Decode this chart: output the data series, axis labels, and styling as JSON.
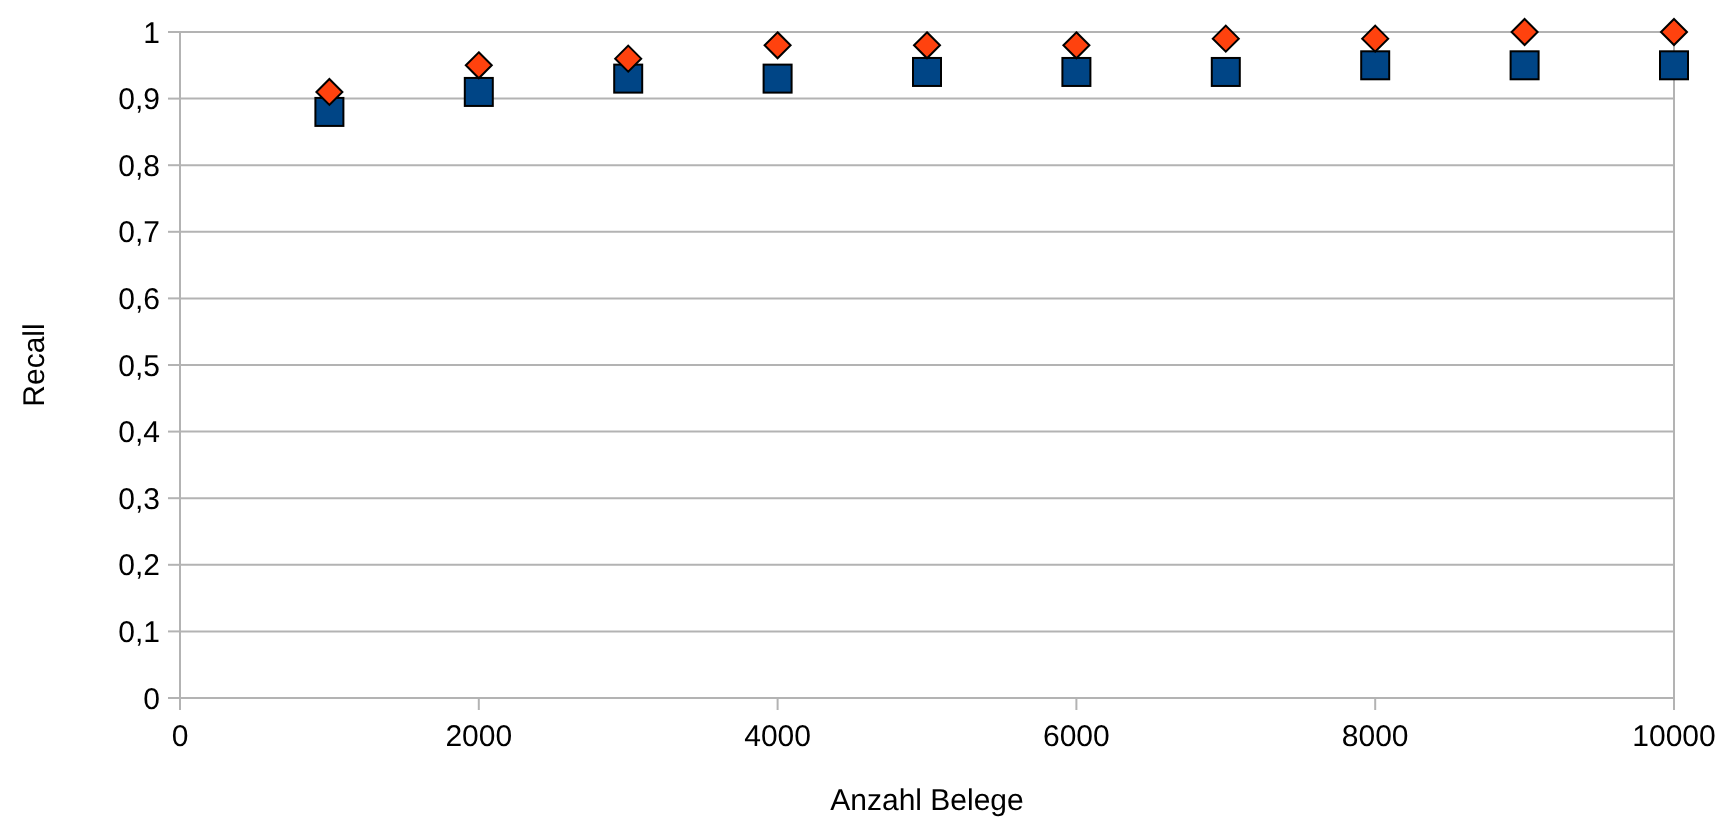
{
  "chart_data": {
    "type": "scatter",
    "xlabel": "Anzahl Belege",
    "ylabel": "Recall",
    "xlim": [
      0,
      10000
    ],
    "xticks": [
      0,
      2000,
      4000,
      6000,
      8000,
      10000
    ],
    "ylim": [
      0,
      1
    ],
    "yticks": [
      {
        "value": 0,
        "label": "0"
      },
      {
        "value": 0.1,
        "label": "0,1"
      },
      {
        "value": 0.2,
        "label": "0,2"
      },
      {
        "value": 0.3,
        "label": "0,3"
      },
      {
        "value": 0.4,
        "label": "0,4"
      },
      {
        "value": 0.5,
        "label": "0,5"
      },
      {
        "value": 0.6,
        "label": "0,6"
      },
      {
        "value": 0.7,
        "label": "0,7"
      },
      {
        "value": 0.8,
        "label": "0,8"
      },
      {
        "value": 0.9,
        "label": "0,9"
      },
      {
        "value": 1,
        "label": "1"
      }
    ],
    "grid": "y",
    "x": [
      1000,
      2000,
      3000,
      4000,
      5000,
      6000,
      7000,
      8000,
      9000,
      10000
    ],
    "series": [
      {
        "color": "#004586",
        "marker": "square",
        "values": [
          0.88,
          0.91,
          0.93,
          0.93,
          0.94,
          0.94,
          0.94,
          0.95,
          0.95,
          0.95
        ]
      },
      {
        "color": "#ff420e",
        "marker": "diamond",
        "values": [
          0.91,
          0.95,
          0.96,
          0.98,
          0.98,
          0.98,
          0.99,
          0.99,
          1,
          1
        ]
      }
    ]
  }
}
